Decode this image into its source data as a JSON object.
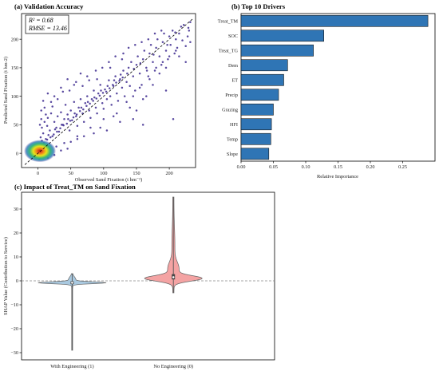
{
  "chart_data": [
    {
      "id": "validation",
      "type": "scatter",
      "title": "(a) Validation Accuracy",
      "xlabel": "Observed Sand Fixation (t hm⁻²)",
      "ylabel": "Predicted Sand Fixation (t hm-2)",
      "xlim": [
        -25,
        240
      ],
      "ylim": [
        -25,
        245
      ],
      "xticks": [
        0,
        50,
        100,
        150,
        200
      ],
      "yticks": [
        0,
        50,
        100,
        150,
        200
      ],
      "xtick_labels": [
        "0",
        "50",
        "100",
        "150",
        "200"
      ],
      "ytick_labels": [
        "0",
        "50",
        "100",
        "150",
        "200"
      ],
      "stats": {
        "r2": "R² = 0.68",
        "rmse": "RMSE = 13.46"
      },
      "reference_line": "1:1 dashed",
      "colormap": [
        "#3d2a8f",
        "#2f7fba",
        "#35b779",
        "#e8e419",
        "#f07f1d",
        "#c0101a"
      ],
      "points": [
        [
          3,
          10
        ],
        [
          5,
          60
        ],
        [
          6,
          45
        ],
        [
          8,
          35
        ],
        [
          10,
          55
        ],
        [
          12,
          25
        ],
        [
          14,
          48
        ],
        [
          15,
          62
        ],
        [
          18,
          40
        ],
        [
          20,
          70
        ],
        [
          22,
          30
        ],
        [
          25,
          55
        ],
        [
          28,
          45
        ],
        [
          30,
          65
        ],
        [
          32,
          38
        ],
        [
          35,
          72
        ],
        [
          38,
          50
        ],
        [
          40,
          60
        ],
        [
          42,
          85
        ],
        [
          45,
          68
        ],
        [
          48,
          40
        ],
        [
          50,
          75
        ],
        [
          52,
          58
        ],
        [
          55,
          90
        ],
        [
          58,
          65
        ],
        [
          60,
          48
        ],
        [
          62,
          80
        ],
        [
          65,
          95
        ],
        [
          68,
          70
        ],
        [
          70,
          55
        ],
        [
          72,
          88
        ],
        [
          75,
          100
        ],
        [
          78,
          75
        ],
        [
          80,
          62
        ],
        [
          82,
          95
        ],
        [
          85,
          110
        ],
        [
          88,
          80
        ],
        [
          90,
          70
        ],
        [
          92,
          105
        ],
        [
          95,
          120
        ],
        [
          98,
          88
        ],
        [
          100,
          78
        ],
        [
          102,
          112
        ],
        [
          105,
          95
        ],
        [
          108,
          128
        ],
        [
          110,
          100
        ],
        [
          112,
          85
        ],
        [
          115,
          118
        ],
        [
          118,
          135
        ],
        [
          120,
          105
        ],
        [
          122,
          92
        ],
        [
          125,
          130
        ],
        [
          128,
          115
        ],
        [
          130,
          145
        ],
        [
          132,
          100
        ],
        [
          135,
          125
        ],
        [
          138,
          150
        ],
        [
          140,
          118
        ],
        [
          142,
          160
        ],
        [
          145,
          135
        ],
        [
          148,
          110
        ],
        [
          150,
          155
        ],
        [
          152,
          170
        ],
        [
          155,
          140
        ],
        [
          158,
          120
        ],
        [
          160,
          165
        ],
        [
          162,
          180
        ],
        [
          165,
          150
        ],
        [
          168,
          135
        ],
        [
          170,
          175
        ],
        [
          172,
          190
        ],
        [
          175,
          160
        ],
        [
          178,
          145
        ],
        [
          180,
          185
        ],
        [
          182,
          200
        ],
        [
          185,
          170
        ],
        [
          188,
          155
        ],
        [
          190,
          195
        ],
        [
          192,
          210
        ],
        [
          195,
          180
        ],
        [
          198,
          165
        ],
        [
          200,
          205
        ],
        [
          202,
          190
        ],
        [
          205,
          215
        ],
        [
          208,
          175
        ],
        [
          210,
          200
        ],
        [
          212,
          185
        ],
        [
          215,
          210
        ],
        [
          218,
          222
        ],
        [
          220,
          198
        ],
        [
          222,
          225
        ],
        [
          225,
          188
        ],
        [
          228,
          205
        ],
        [
          230,
          215
        ],
        [
          232,
          195
        ],
        [
          15,
          105
        ],
        [
          20,
          90
        ],
        [
          10,
          80
        ],
        [
          25,
          100
        ],
        [
          35,
          115
        ],
        [
          45,
          130
        ],
        [
          55,
          120
        ],
        [
          65,
          140
        ],
        [
          75,
          135
        ],
        [
          60,
          30
        ],
        [
          80,
          45
        ],
        [
          100,
          60
        ],
        [
          120,
          70
        ],
        [
          140,
          80
        ],
        [
          160,
          95
        ],
        [
          90,
          130
        ],
        [
          110,
          150
        ],
        [
          130,
          175
        ],
        [
          105,
          40
        ],
        [
          125,
          55
        ],
        [
          150,
          75
        ],
        [
          165,
          100
        ],
        [
          175,
          120
        ],
        [
          185,
          140
        ],
        [
          195,
          150
        ],
        [
          8,
          -5
        ],
        [
          15,
          -8
        ],
        [
          25,
          -3
        ],
        [
          35,
          5
        ],
        [
          45,
          8
        ],
        [
          2,
          -10
        ],
        [
          12,
          0
        ],
        [
          18,
          5
        ],
        [
          28,
          12
        ],
        [
          40,
          18
        ],
        [
          50,
          20
        ],
        [
          60,
          25
        ],
        [
          70,
          30
        ],
        [
          85,
          35
        ],
        [
          95,
          45
        ],
        [
          115,
          65
        ],
        [
          135,
          90
        ],
        [
          145,
          100
        ],
        [
          155,
          115
        ],
        [
          170,
          130
        ],
        [
          180,
          150
        ],
        [
          190,
          160
        ],
        [
          200,
          170
        ],
        [
          210,
          180
        ],
        [
          5,
          75
        ],
        [
          8,
          92
        ],
        [
          12,
          68
        ],
        [
          3,
          50
        ],
        [
          22,
          82
        ],
        [
          30,
          95
        ],
        [
          38,
          108
        ],
        [
          48,
          110
        ],
        [
          58,
          125
        ],
        [
          68,
          118
        ],
        [
          78,
          128
        ],
        [
          88,
          145
        ],
        [
          98,
          150
        ],
        [
          108,
          160
        ],
        [
          118,
          170
        ],
        [
          128,
          165
        ],
        [
          138,
          185
        ],
        [
          148,
          190
        ],
        [
          158,
          195
        ],
        [
          168,
          200
        ],
        [
          178,
          210
        ],
        [
          188,
          215
        ],
        [
          206,
          60
        ],
        [
          195,
          110
        ],
        [
          160,
          50
        ],
        [
          145,
          60
        ],
        [
          215,
          170
        ],
        [
          225,
          160
        ],
        [
          232,
          230
        ],
        [
          229,
          220
        ],
        [
          209,
          212
        ],
        [
          197,
          190
        ],
        [
          176,
          173
        ],
        [
          166,
          145
        ],
        [
          156,
          158
        ],
        [
          146,
          148
        ],
        [
          136,
          140
        ],
        [
          126,
          138
        ],
        [
          116,
          128
        ],
        [
          106,
          118
        ],
        [
          96,
          110
        ],
        [
          86,
          98
        ],
        [
          76,
          90
        ],
        [
          66,
          80
        ],
        [
          56,
          70
        ],
        [
          46,
          60
        ],
        [
          36,
          50
        ],
        [
          26,
          42
        ],
        [
          16,
          32
        ],
        [
          6,
          22
        ],
        [
          4,
          28
        ],
        [
          9,
          18
        ],
        [
          14,
          24
        ],
        [
          19,
          28
        ],
        [
          24,
          33
        ],
        [
          29,
          38
        ],
        [
          34,
          44
        ],
        [
          39,
          49
        ],
        [
          44,
          52
        ],
        [
          49,
          57
        ],
        [
          54,
          63
        ],
        [
          59,
          68
        ],
        [
          64,
          74
        ],
        [
          69,
          77
        ],
        [
          74,
          83
        ],
        [
          79,
          87
        ],
        [
          84,
          92
        ],
        [
          89,
          96
        ],
        [
          94,
          101
        ],
        [
          99,
          106
        ],
        [
          104,
          108
        ],
        [
          109,
          114
        ],
        [
          114,
          120
        ],
        [
          119,
          124
        ],
        [
          124,
          127
        ],
        [
          129,
          133
        ]
      ]
    },
    {
      "id": "drivers",
      "type": "bar",
      "orientation": "horizontal",
      "title": "(b) Top 10 Drivers",
      "xlabel": "Relative Importance",
      "categories": [
        "Treat_TM",
        "SOC",
        "Treat_TG",
        "Dem",
        "ET",
        "Precip",
        "Grazing",
        "HFI",
        "Temp",
        "Slope"
      ],
      "values": [
        0.289,
        0.128,
        0.112,
        0.072,
        0.066,
        0.058,
        0.05,
        0.047,
        0.046,
        0.043
      ],
      "xlim": [
        0,
        0.3
      ],
      "xticks": [
        0,
        0.05,
        0.1,
        0.15,
        0.2,
        0.25
      ],
      "xtick_labels": [
        "0.00",
        "0.05",
        "0.10",
        "0.15",
        "0.20",
        "0.25"
      ],
      "bar_color": "#2f75b5"
    },
    {
      "id": "shap",
      "type": "violin",
      "title": "(c) Impact of Treat_TM on Sand Fixation",
      "ylabel": "SHAP Value (Contribution to Service)",
      "ylim": [
        -33,
        37
      ],
      "yticks": [
        -30,
        -20,
        -10,
        0,
        10,
        20,
        30
      ],
      "ytick_labels": [
        "−30",
        "−20",
        "−10",
        "0",
        "10",
        "20",
        "30"
      ],
      "groups": [
        {
          "label": "With Engineering (1)",
          "color": "#a9c9e0",
          "min": -29,
          "max": 3,
          "q1": -1.4,
          "median": -0.8,
          "q3": -0.2
        },
        {
          "label": "No Engineering (0)",
          "color": "#f4a3a3",
          "min": -5,
          "max": 35,
          "q1": 0.6,
          "median": 1.5,
          "q3": 2.8
        }
      ],
      "reference_line": 0
    }
  ]
}
